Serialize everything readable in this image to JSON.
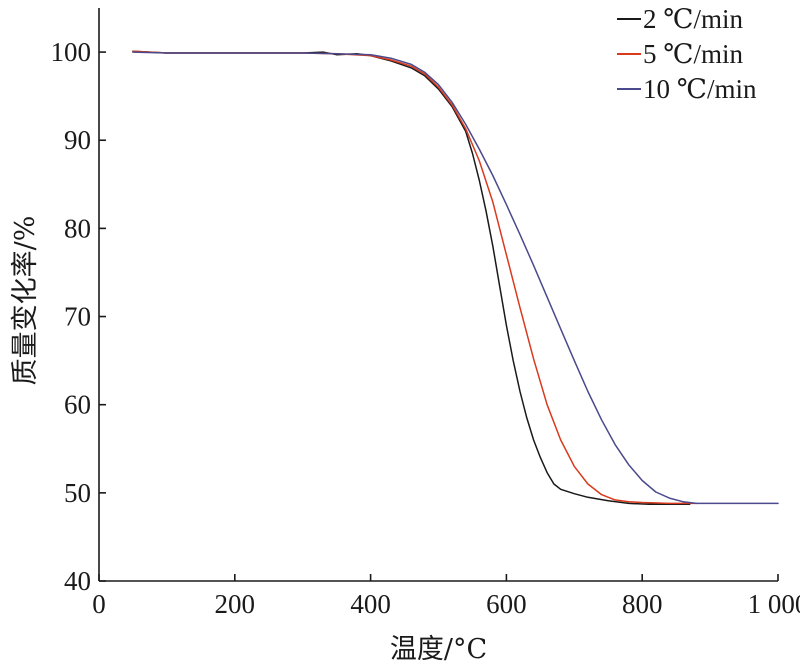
{
  "chart_data": {
    "type": "line",
    "xlabel": "温度/°C",
    "ylabel": "质量变化率/%",
    "xlim": [
      0,
      1000
    ],
    "ylim": [
      40,
      105
    ],
    "x_ticks": [
      0,
      200,
      400,
      600,
      800,
      1000
    ],
    "x_tick_labels": [
      "0",
      "200",
      "400",
      "600",
      "800",
      "1 000"
    ],
    "y_ticks": [
      40,
      50,
      60,
      70,
      80,
      90,
      100
    ],
    "y_tick_labels": [
      "40",
      "50",
      "60",
      "70",
      "80",
      "90",
      "100"
    ],
    "grid": false,
    "legend_position": "top-right",
    "series": [
      {
        "name": "2 ℃/min",
        "color": "#1a1a1a",
        "points": [
          [
            50,
            100.1
          ],
          [
            100,
            99.9
          ],
          [
            150,
            99.9
          ],
          [
            200,
            99.9
          ],
          [
            250,
            99.9
          ],
          [
            300,
            99.9
          ],
          [
            330,
            100.0
          ],
          [
            350,
            99.7
          ],
          [
            380,
            99.8
          ],
          [
            400,
            99.6
          ],
          [
            430,
            99.0
          ],
          [
            460,
            98.2
          ],
          [
            480,
            97.3
          ],
          [
            500,
            95.8
          ],
          [
            520,
            93.8
          ],
          [
            540,
            91.0
          ],
          [
            550,
            88.5
          ],
          [
            560,
            85.5
          ],
          [
            570,
            82.0
          ],
          [
            580,
            78.0
          ],
          [
            590,
            73.5
          ],
          [
            600,
            69.0
          ],
          [
            610,
            65.0
          ],
          [
            620,
            61.5
          ],
          [
            630,
            58.5
          ],
          [
            640,
            56.0
          ],
          [
            650,
            54.0
          ],
          [
            660,
            52.3
          ],
          [
            670,
            51.0
          ],
          [
            680,
            50.4
          ],
          [
            700,
            49.9
          ],
          [
            720,
            49.5
          ],
          [
            750,
            49.1
          ],
          [
            780,
            48.8
          ],
          [
            810,
            48.7
          ],
          [
            840,
            48.7
          ],
          [
            870,
            48.7
          ]
        ]
      },
      {
        "name": "5 ℃/min",
        "color": "#d93a1e",
        "points": [
          [
            50,
            100.1
          ],
          [
            100,
            99.9
          ],
          [
            150,
            99.9
          ],
          [
            200,
            99.9
          ],
          [
            250,
            99.9
          ],
          [
            300,
            99.9
          ],
          [
            350,
            99.8
          ],
          [
            400,
            99.6
          ],
          [
            430,
            99.1
          ],
          [
            460,
            98.4
          ],
          [
            480,
            97.5
          ],
          [
            500,
            96.0
          ],
          [
            520,
            94.0
          ],
          [
            540,
            91.3
          ],
          [
            560,
            87.7
          ],
          [
            580,
            83.0
          ],
          [
            600,
            77.0
          ],
          [
            620,
            71.0
          ],
          [
            640,
            65.2
          ],
          [
            660,
            60.0
          ],
          [
            680,
            56.0
          ],
          [
            700,
            53.0
          ],
          [
            720,
            51.0
          ],
          [
            740,
            49.8
          ],
          [
            760,
            49.2
          ],
          [
            780,
            49.0
          ],
          [
            800,
            48.9
          ],
          [
            840,
            48.8
          ],
          [
            880,
            48.8
          ]
        ]
      },
      {
        "name": "10 ℃/min",
        "color": "#4a4a8c",
        "points": [
          [
            50,
            100.0
          ],
          [
            100,
            99.9
          ],
          [
            150,
            99.9
          ],
          [
            200,
            99.9
          ],
          [
            250,
            99.9
          ],
          [
            300,
            99.9
          ],
          [
            350,
            99.8
          ],
          [
            400,
            99.7
          ],
          [
            430,
            99.3
          ],
          [
            460,
            98.6
          ],
          [
            480,
            97.7
          ],
          [
            500,
            96.3
          ],
          [
            520,
            94.3
          ],
          [
            540,
            91.8
          ],
          [
            560,
            89.0
          ],
          [
            580,
            86.0
          ],
          [
            600,
            82.7
          ],
          [
            620,
            79.3
          ],
          [
            640,
            75.8
          ],
          [
            660,
            72.2
          ],
          [
            680,
            68.6
          ],
          [
            700,
            65.0
          ],
          [
            720,
            61.5
          ],
          [
            740,
            58.3
          ],
          [
            760,
            55.5
          ],
          [
            780,
            53.2
          ],
          [
            800,
            51.4
          ],
          [
            820,
            50.1
          ],
          [
            840,
            49.4
          ],
          [
            860,
            49.0
          ],
          [
            880,
            48.8
          ],
          [
            900,
            48.8
          ],
          [
            940,
            48.8
          ],
          [
            980,
            48.8
          ],
          [
            1000,
            48.8
          ]
        ]
      }
    ]
  }
}
